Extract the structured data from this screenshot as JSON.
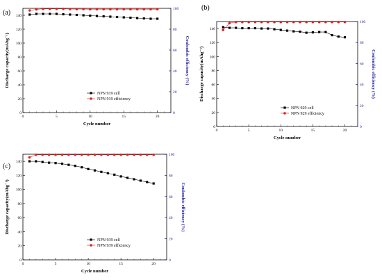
{
  "colors": {
    "capacity": "#000000",
    "efficiency": "#e0201f",
    "right_axis": "#1a1a9c"
  },
  "chart_data": [
    {
      "type": "scatter",
      "panel": "(a)",
      "xlabel": "Cycle number",
      "ylabel": "Discharge capacity(mAhg⁻¹)",
      "y2label": "Coulombic efficiency (%)",
      "xlim": [
        0,
        22
      ],
      "ylim": [
        0,
        150
      ],
      "y2lim": [
        0,
        100
      ],
      "xticks": [
        0,
        5,
        10,
        15,
        20
      ],
      "yticks": [
        0,
        20,
        40,
        60,
        80,
        100,
        120,
        140
      ],
      "y2ticks": [
        0,
        20,
        40,
        60,
        80,
        100
      ],
      "legend_position": "center-right",
      "x": [
        1,
        2,
        3,
        4,
        5,
        6,
        7,
        8,
        9,
        10,
        11,
        12,
        13,
        14,
        15,
        16,
        17,
        18,
        19,
        20
      ],
      "series": [
        {
          "name": "NPN 919 cell",
          "axis": "left",
          "marker": "square",
          "values": [
            141,
            142,
            142,
            142,
            142,
            141.5,
            141,
            140.5,
            140,
            139.5,
            139,
            138.5,
            138,
            137.5,
            137,
            136.5,
            136,
            135.5,
            135,
            135
          ]
        },
        {
          "name": "NPN 919 efficiency",
          "axis": "right",
          "marker": "circle",
          "values": [
            98,
            99,
            99.5,
            99.5,
            99.5,
            99.5,
            99.3,
            99.3,
            99.3,
            99.2,
            99.2,
            99.2,
            99.2,
            99.2,
            99.2,
            99.2,
            99.2,
            99.2,
            99.2,
            99.2
          ]
        }
      ]
    },
    {
      "type": "scatter",
      "panel": "(b)",
      "xlabel": "Cycle number",
      "ylabel": "Discharge capacity(mAhg⁻¹)",
      "y2label": "Coulombic efficiency (%)",
      "xlim": [
        0,
        22
      ],
      "ylim": [
        0,
        150
      ],
      "y2lim": [
        0,
        100
      ],
      "xticks": [
        0,
        5,
        10,
        15,
        20
      ],
      "yticks": [
        0,
        20,
        40,
        60,
        80,
        100,
        120,
        140
      ],
      "y2ticks": [
        0,
        20,
        40,
        60,
        80,
        100
      ],
      "legend_position": "center-right",
      "x": [
        1,
        2,
        3,
        4,
        5,
        6,
        7,
        8,
        9,
        10,
        11,
        12,
        13,
        14,
        15,
        16,
        17,
        18,
        19,
        20
      ],
      "series": [
        {
          "name": "NPN 929 cell",
          "axis": "left",
          "marker": "square",
          "values": [
            142,
            141,
            141,
            140.5,
            140.5,
            140.5,
            140,
            140,
            139,
            138,
            137,
            136,
            135.5,
            134,
            134.5,
            135,
            135,
            130.5,
            128.5,
            127.5
          ]
        },
        {
          "name": "NPN 929 efficiency",
          "axis": "right",
          "marker": "circle",
          "values": [
            92,
            98.5,
            99.5,
            99.5,
            99.5,
            99.5,
            99.5,
            99.5,
            99.5,
            99.5,
            99.5,
            99.5,
            99.5,
            99.5,
            99.5,
            99.5,
            99.5,
            99.5,
            99.5,
            99.5
          ]
        }
      ]
    },
    {
      "type": "scatter",
      "panel": "(c)",
      "xlabel": "Cycle number",
      "ylabel": "Discharge capacity(mAhg⁻¹)",
      "y2label": "Coulombic efficiency (%)",
      "xlim": [
        0,
        22
      ],
      "ylim": [
        0,
        150
      ],
      "y2lim": [
        0,
        100
      ],
      "xticks": [
        0,
        5,
        10,
        15,
        20
      ],
      "yticks": [
        0,
        20,
        40,
        60,
        80,
        100,
        120,
        140
      ],
      "y2ticks": [
        0,
        20,
        40,
        60,
        80,
        100
      ],
      "legend_position": "center-right",
      "x": [
        1,
        2,
        3,
        4,
        5,
        6,
        7,
        8,
        9,
        10,
        11,
        12,
        13,
        14,
        15,
        16,
        17,
        18,
        19,
        20
      ],
      "series": [
        {
          "name": "NPN 939 cell",
          "axis": "left",
          "marker": "square",
          "values": [
            140,
            140,
            139,
            138,
            137.5,
            136.5,
            135,
            133.5,
            131.5,
            129,
            127,
            125,
            123,
            121,
            118.5,
            116.5,
            114.5,
            112.5,
            110.5,
            108.5
          ]
        },
        {
          "name": "NPN 939 efficiency",
          "axis": "right",
          "marker": "circle",
          "values": [
            97,
            99.5,
            99.5,
            99.5,
            99.5,
            99.5,
            99.5,
            99.5,
            99.5,
            99.5,
            99.5,
            99.5,
            99.5,
            99.5,
            99.5,
            99.5,
            99.5,
            99.5,
            99.5,
            99.5
          ]
        }
      ]
    }
  ]
}
